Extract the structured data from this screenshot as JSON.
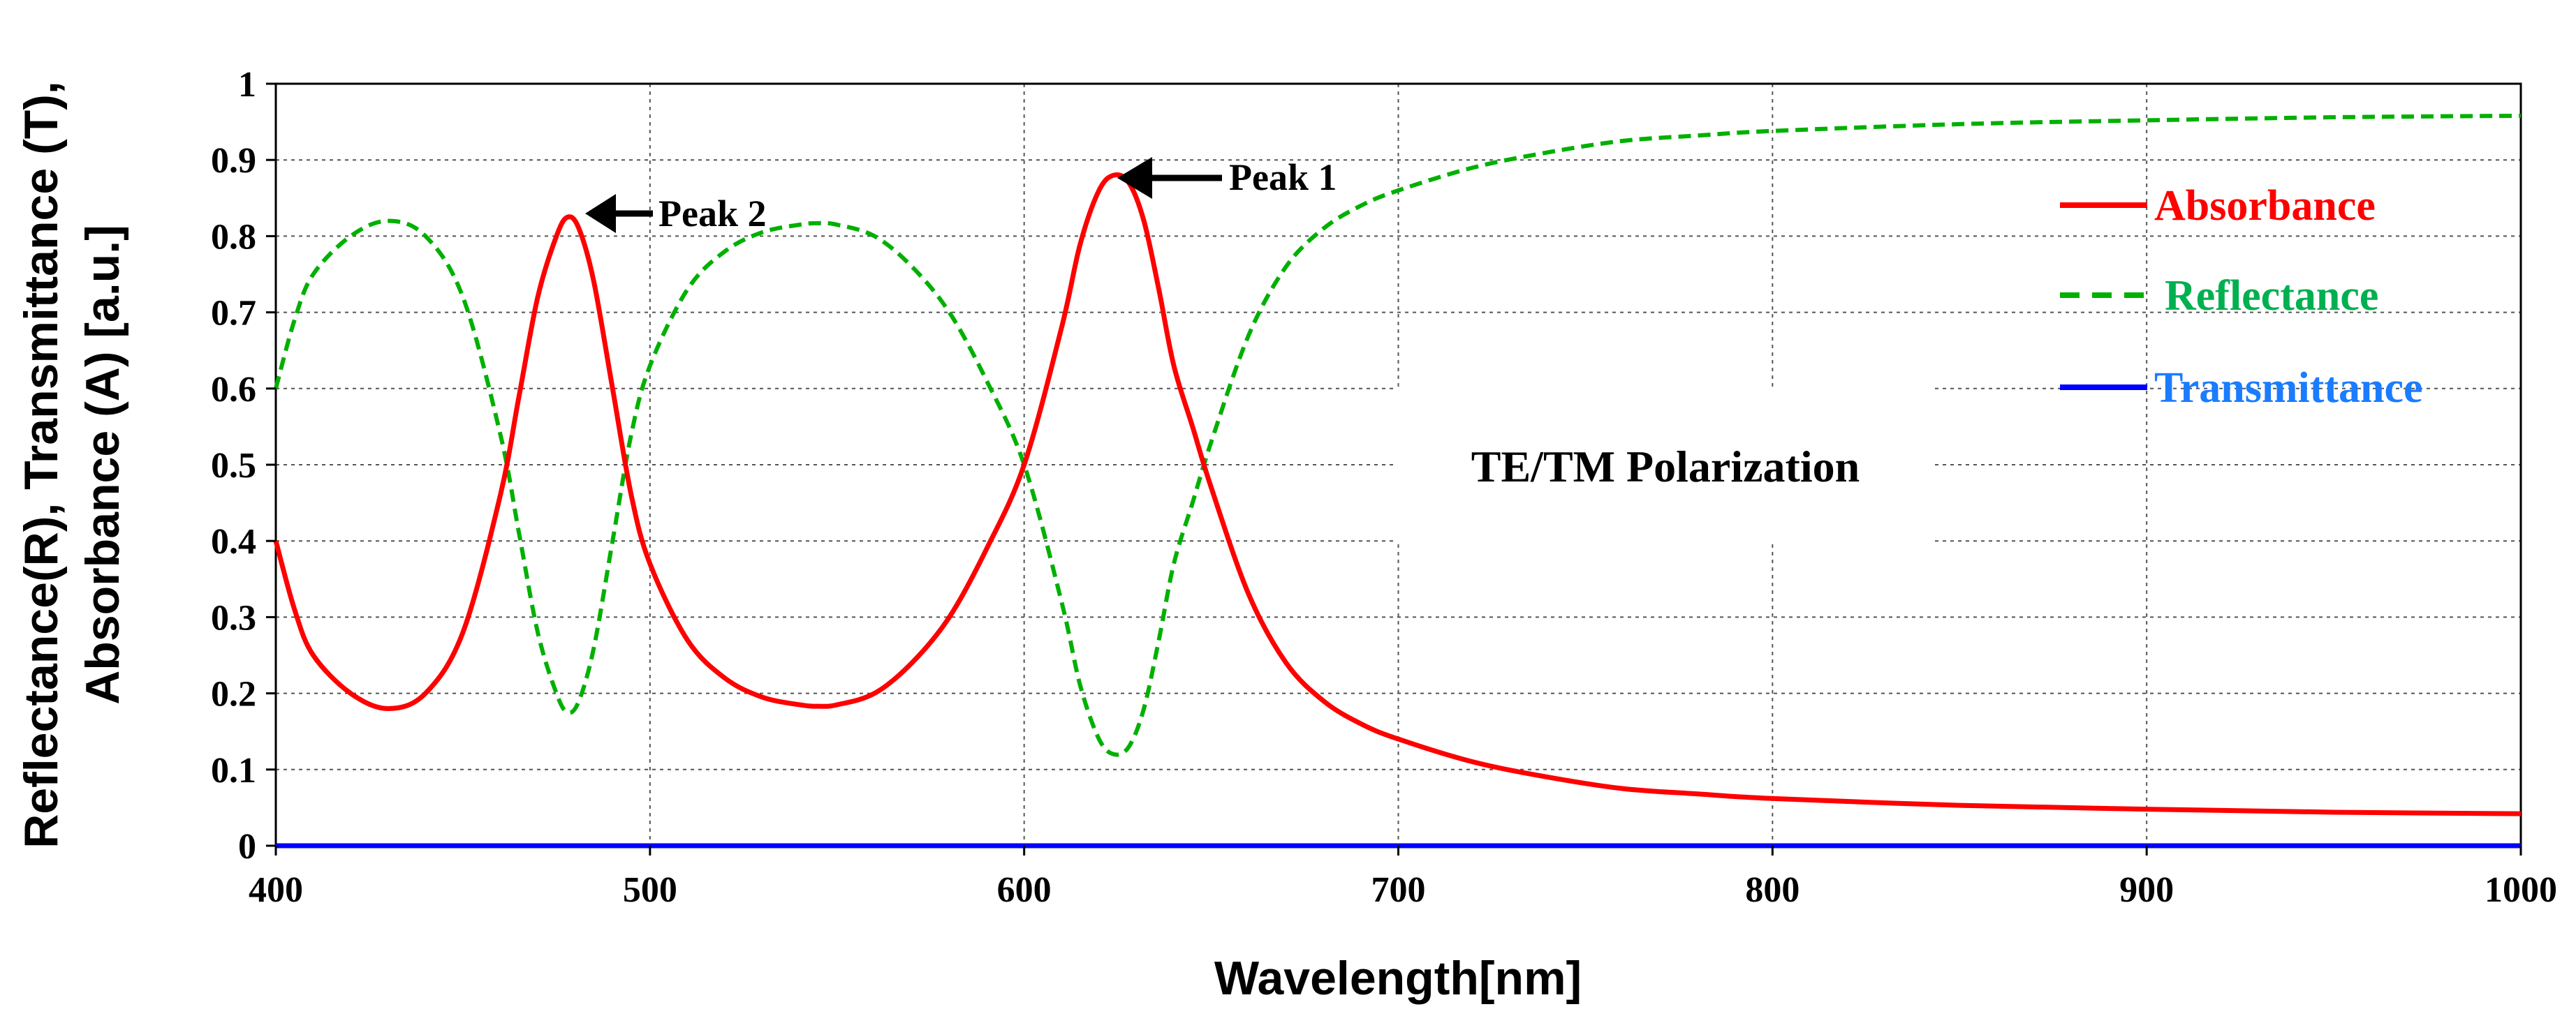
{
  "chart_data": {
    "type": "line",
    "xlabel": "Wavelength[nm]",
    "ylabel_lines": [
      "Reflectance(R), Transmittance (T),",
      "Absorbance (A) [a.u.]"
    ],
    "xlim": [
      400,
      1000
    ],
    "ylim": [
      0,
      1
    ],
    "grid": true,
    "x_ticks": [
      400,
      500,
      600,
      700,
      800,
      900,
      1000
    ],
    "x_tick_labels": [
      "400",
      "500",
      "600",
      "700",
      "800",
      "900",
      "1000"
    ],
    "y_ticks": [
      0,
      0.1,
      0.2,
      0.3,
      0.4,
      0.5,
      0.6,
      0.7,
      0.8,
      0.9,
      1
    ],
    "y_tick_labels": [
      "0",
      "0.1",
      "0.2",
      "0.3",
      "0.4",
      "0.5",
      "0.6",
      "0.7",
      "0.8",
      "0.9",
      "1"
    ],
    "legend_position": "right",
    "series": [
      {
        "name": "Absorbance",
        "color": "#ff0000",
        "style": "solid",
        "x": [
          400,
          405,
          410,
          420,
          430,
          440,
          450,
          460,
          465,
          470,
          475,
          478,
          481,
          485,
          490,
          495,
          500,
          510,
          520,
          530,
          540,
          545,
          550,
          560,
          570,
          580,
          590,
          600,
          610,
          615,
          620,
          624,
          628,
          632,
          636,
          640,
          645,
          650,
          660,
          670,
          680,
          690,
          700,
          720,
          740,
          760,
          780,
          800,
          850,
          900,
          950,
          1000
        ],
        "y": [
          0.4,
          0.31,
          0.25,
          0.2,
          0.18,
          0.2,
          0.28,
          0.46,
          0.59,
          0.72,
          0.8,
          0.825,
          0.81,
          0.74,
          0.6,
          0.46,
          0.37,
          0.27,
          0.22,
          0.195,
          0.185,
          0.183,
          0.185,
          0.2,
          0.24,
          0.3,
          0.39,
          0.5,
          0.68,
          0.79,
          0.86,
          0.88,
          0.87,
          0.82,
          0.73,
          0.63,
          0.55,
          0.47,
          0.33,
          0.24,
          0.19,
          0.16,
          0.14,
          0.11,
          0.09,
          0.075,
          0.068,
          0.062,
          0.053,
          0.048,
          0.044,
          0.042
        ]
      },
      {
        "name": "Reflectance",
        "color": "#00b000",
        "style": "dashed",
        "x": [
          400,
          405,
          410,
          420,
          430,
          440,
          450,
          460,
          465,
          470,
          475,
          478,
          481,
          485,
          490,
          495,
          500,
          510,
          520,
          530,
          540,
          545,
          550,
          560,
          570,
          580,
          590,
          600,
          610,
          615,
          620,
          624,
          628,
          632,
          636,
          640,
          645,
          650,
          660,
          670,
          680,
          690,
          700,
          720,
          740,
          760,
          780,
          800,
          850,
          900,
          950,
          1000
        ],
        "y": [
          0.6,
          0.69,
          0.75,
          0.8,
          0.82,
          0.8,
          0.72,
          0.54,
          0.41,
          0.28,
          0.2,
          0.175,
          0.19,
          0.26,
          0.4,
          0.54,
          0.63,
          0.73,
          0.78,
          0.805,
          0.815,
          0.817,
          0.815,
          0.8,
          0.76,
          0.7,
          0.61,
          0.5,
          0.32,
          0.21,
          0.14,
          0.12,
          0.13,
          0.18,
          0.27,
          0.37,
          0.45,
          0.53,
          0.67,
          0.76,
          0.81,
          0.84,
          0.86,
          0.89,
          0.91,
          0.925,
          0.932,
          0.938,
          0.947,
          0.952,
          0.956,
          0.958
        ]
      },
      {
        "name": "Transmittance",
        "color": "#0000ff",
        "style": "solid",
        "x": [
          400,
          1000
        ],
        "y": [
          0,
          0
        ]
      }
    ],
    "annotations": [
      {
        "text": "Peak 1",
        "x": 624,
        "y": 0.88
      },
      {
        "text": "Peak 2",
        "x": 478,
        "y": 0.825
      }
    ],
    "inset_label": "TE/TM Polarization"
  }
}
